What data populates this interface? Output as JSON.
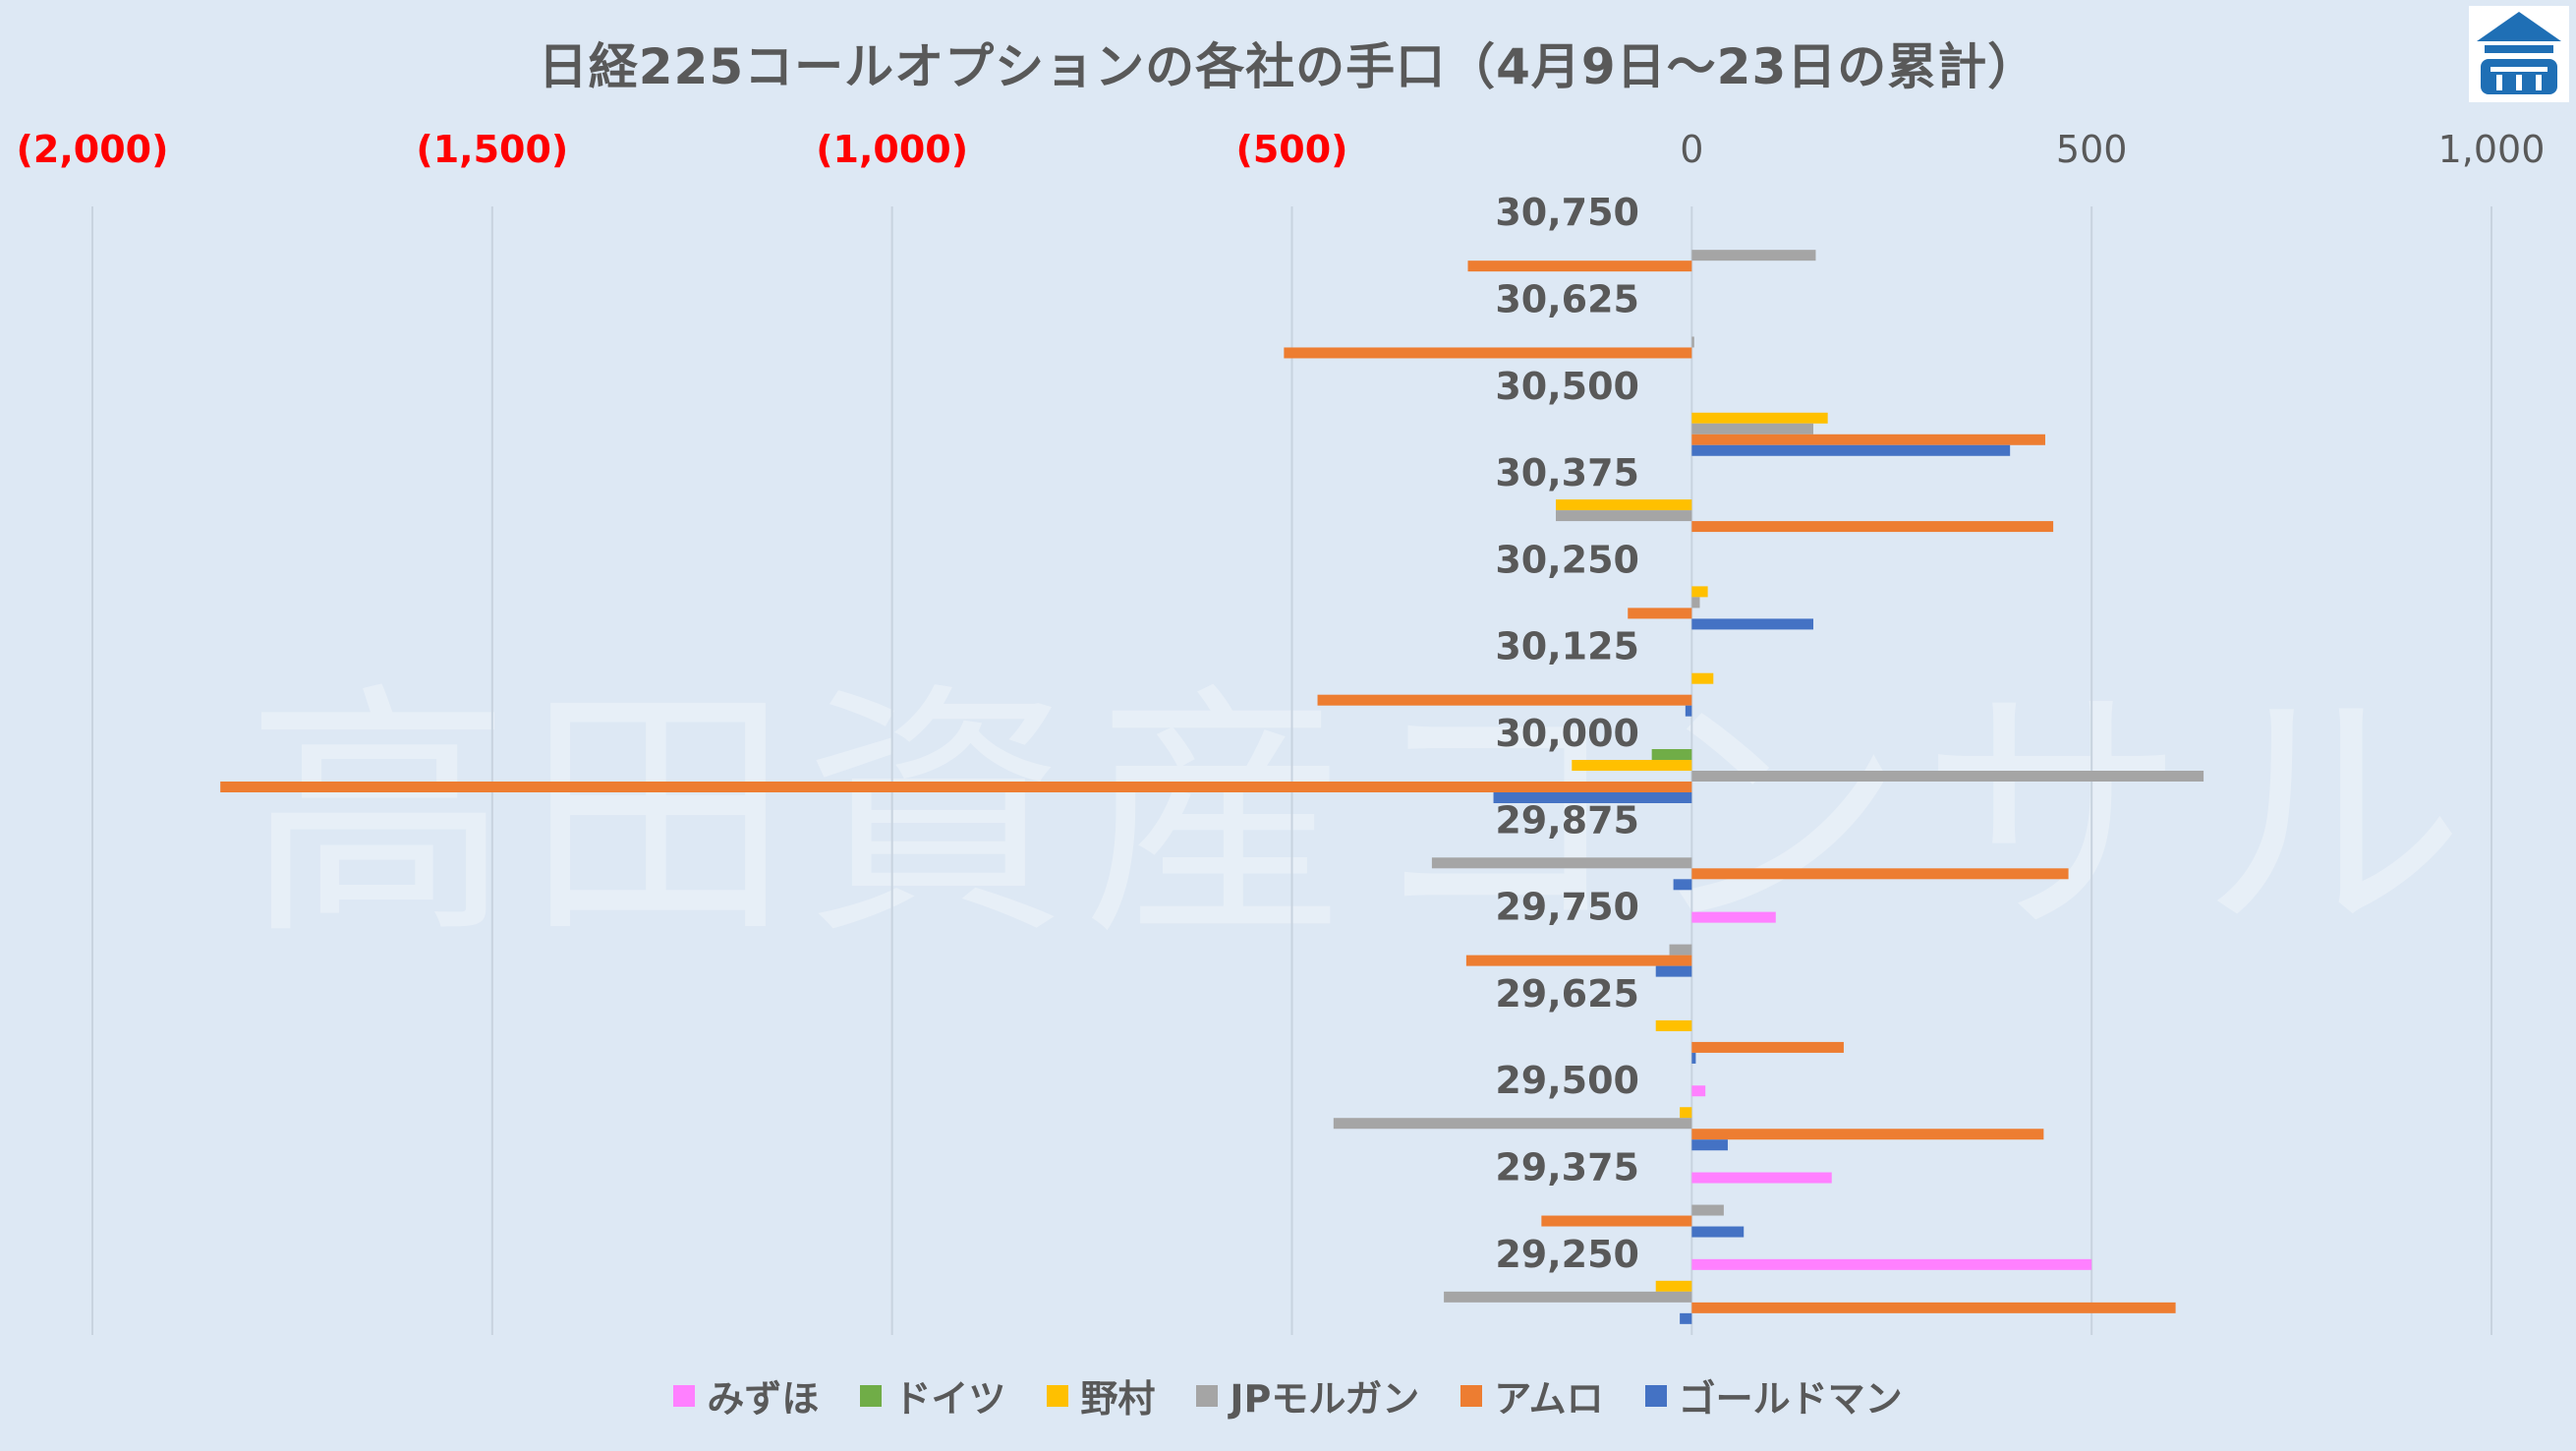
{
  "chart_data": {
    "type": "bar",
    "orientation": "horizontal",
    "title": "日経225コールオプションの各社の手口（4月9日～23日の累計）",
    "categories": [
      "30,750",
      "30,625",
      "30,500",
      "30,375",
      "30,250",
      "30,125",
      "30,000",
      "29,875",
      "29,750",
      "29,625",
      "29,500",
      "29,375",
      "29,250"
    ],
    "xlim": [
      -2000,
      1000
    ],
    "x_ticks": [
      -2000,
      -1500,
      -1000,
      -500,
      0,
      500,
      1000
    ],
    "x_tick_labels": [
      "(2,000)",
      "(1,500)",
      "(1,000)",
      "(500)",
      "0",
      "500",
      "1,000"
    ],
    "negative_tick_color": "#ff0000",
    "positive_tick_color": "#595959",
    "axis_position": "top",
    "grid": true,
    "legend_position": "bottom",
    "series": [
      {
        "name": "みずほ",
        "color": "#ff80ff",
        "values": [
          0,
          0,
          0,
          0,
          0,
          0,
          0,
          0,
          105,
          0,
          17,
          175,
          500
        ]
      },
      {
        "name": "ドイツ",
        "color": "#70ad47",
        "values": [
          0,
          0,
          0,
          0,
          0,
          0,
          -50,
          0,
          0,
          0,
          0,
          0,
          0
        ]
      },
      {
        "name": "野村",
        "color": "#ffc000",
        "values": [
          0,
          0,
          170,
          -170,
          20,
          27,
          -150,
          0,
          0,
          -45,
          -15,
          0,
          -45
        ]
      },
      {
        "name": "JPモルガン",
        "color": "#a5a5a5",
        "values": [
          155,
          3,
          152,
          -170,
          10,
          0,
          640,
          -325,
          -28,
          0,
          -448,
          40,
          -310
        ]
      },
      {
        "name": "アムロ",
        "color": "#ed7d31",
        "values": [
          -280,
          -510,
          442,
          452,
          -80,
          -468,
          -1840,
          471,
          -282,
          190,
          440,
          -188,
          605
        ]
      },
      {
        "name": "ゴールドマン",
        "color": "#4472c4",
        "values": [
          0,
          0,
          398,
          0,
          152,
          -8,
          -248,
          -23,
          -45,
          5,
          45,
          65,
          -15
        ]
      }
    ]
  },
  "watermark": "高田資産コンサル",
  "logo": {
    "icon": "house-logo-icon",
    "color": "#1f6fb5"
  }
}
